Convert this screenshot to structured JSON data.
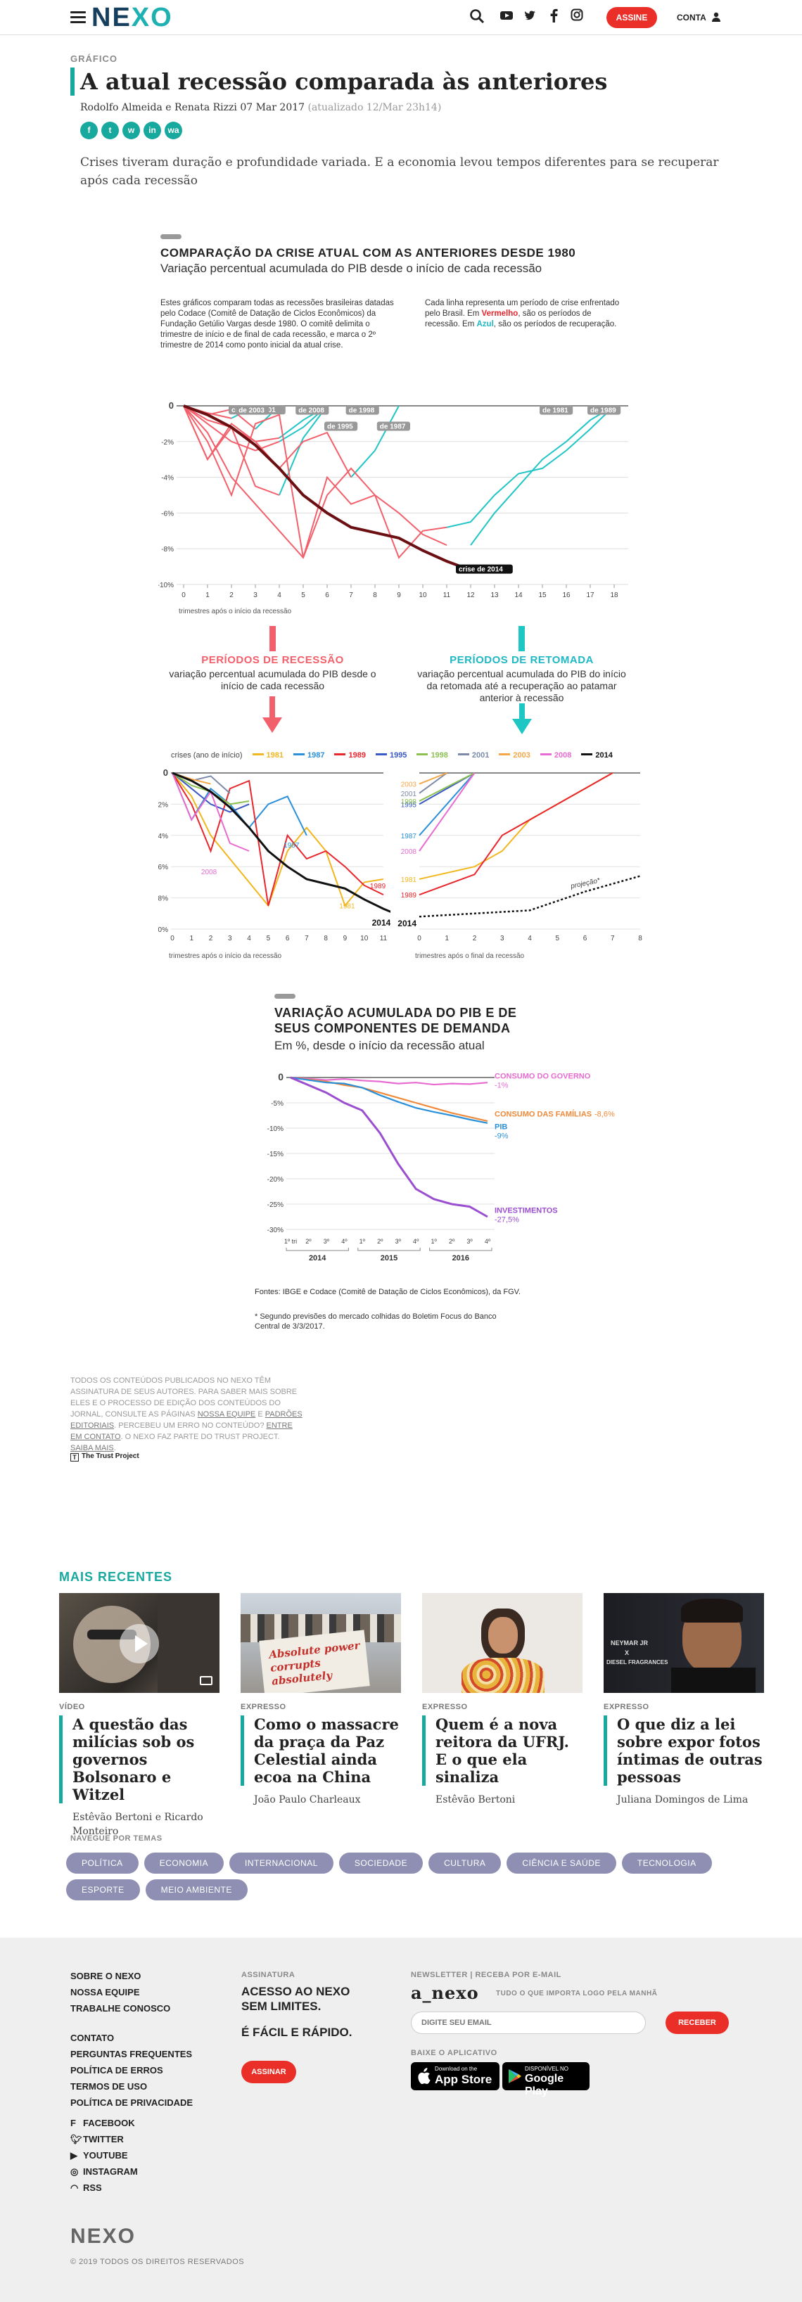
{
  "header": {
    "logo": "NEXO",
    "assine_label": "ASSINE",
    "conta_label": "CONTA",
    "icons": [
      "search-icon",
      "youtube-icon",
      "twitter-icon",
      "facebook-icon",
      "instagram-icon",
      "user-icon"
    ]
  },
  "article": {
    "kicker": "GRÁFICO",
    "title": "A atual recessão comparada às anteriores",
    "byline": "Rodolfo Almeida e Renata Rizzi 07 Mar 2017",
    "updated": "(atualizado 12/Mar 23h14)",
    "share": [
      "f",
      "t",
      "w",
      "in",
      "wa"
    ],
    "lead": "Crises tiveram duração e profundidade variada. E a economia levou tempos diferentes para se recuperar após cada recessão"
  },
  "chart1": {
    "title": "COMPARAÇÃO DA CRISE ATUAL COM AS ANTERIORES DESDE 1980",
    "subtitle": "Variação percentual acumulada do PIB desde o início de cada recessão",
    "note_left": "Estes gráficos comparam todas as recessões brasileiras datadas pelo Codace (Comitê de Datação de Ciclos Econômicos) da Fundação Getúlio Vargas desde 1980. O comitê delimita o trimestre de início e de final de cada recessão, e marca o 2º trimestre de 2014 como ponto inicial da atual crise.",
    "note_right_a": "Cada linha representa um período de crise enfrentado pelo Brasil. Em ",
    "note_right_red": "Vermelho",
    "note_right_b": ", são os períodos de recessão. Em ",
    "note_right_blue": "Azul",
    "note_right_c": ", são os períodos de recuperação.",
    "xlabel": "trimestres após o início da recessão",
    "labels": {
      "crise2001": "crise de 2001",
      "d2003": "de 2003",
      "d2008": "de 2008",
      "d1998": "de 1998",
      "d1995": "de 1995",
      "d1987": "de 1987",
      "d1981": "de 1981",
      "d1989": "de 1989",
      "crise2014": "crise de 2014"
    }
  },
  "chart1_data": {
    "type": "line",
    "x": [
      0,
      1,
      2,
      3,
      4,
      5,
      6,
      7,
      8,
      9,
      10,
      11,
      12,
      13,
      14,
      15,
      16,
      17,
      18
    ],
    "ylim": [
      -10,
      0
    ],
    "yticks": [
      "0",
      "-2%",
      "-4%",
      "-6%",
      "-8%",
      "-10%"
    ],
    "recession_series": [
      {
        "name": "1981",
        "values": [
          0,
          -1.5,
          -4,
          -5.5,
          -7,
          -8.5,
          -5,
          -3.5,
          -5,
          -8.5,
          -7,
          -6.8
        ]
      },
      {
        "name": "1987",
        "values": [
          0,
          -3,
          -1,
          -2,
          -3.5,
          -2,
          -1.5,
          -4
        ]
      },
      {
        "name": "1989",
        "values": [
          0,
          -2,
          -5,
          -1,
          -0.5,
          -8.5,
          -4,
          -5.5,
          -5,
          -6,
          -7.2,
          -7.8
        ]
      },
      {
        "name": "1995",
        "values": [
          0,
          -1,
          -2,
          -2.5,
          -2
        ]
      },
      {
        "name": "1998",
        "values": [
          0,
          -0.8,
          -1.2,
          -2,
          -1.8
        ]
      },
      {
        "name": "2001",
        "values": [
          0,
          -0.5,
          -0.2,
          -1.3
        ]
      },
      {
        "name": "2003",
        "values": [
          0,
          -0.4,
          -0.7
        ]
      },
      {
        "name": "2008",
        "values": [
          0,
          -3,
          -1.2,
          -4.5,
          -5
        ]
      },
      {
        "name": "2014",
        "values": [
          0,
          -0.5,
          -1.2,
          -2.2,
          -3.5,
          -5,
          -6,
          -6.8,
          -7.1,
          -7.4,
          -8.1,
          -8.7,
          -9.2
        ]
      }
    ],
    "recovery_series": [
      {
        "name": "1981",
        "points": [
          [
            11,
            -6.8
          ],
          [
            12,
            -6.5
          ],
          [
            13,
            -5
          ],
          [
            14,
            -3.8
          ],
          [
            15,
            -3.5
          ],
          [
            16,
            -2.5
          ],
          [
            17,
            -1.3
          ],
          [
            18,
            0
          ]
        ]
      },
      {
        "name": "1989",
        "points": [
          [
            12,
            -7.8
          ],
          [
            13,
            -6
          ],
          [
            14,
            -4.5
          ],
          [
            15,
            -3
          ],
          [
            16,
            -2
          ],
          [
            17,
            -0.8
          ],
          [
            18,
            0
          ]
        ]
      },
      {
        "name": "1987",
        "points": [
          [
            7,
            -4
          ],
          [
            8,
            -2.5
          ],
          [
            9,
            0
          ]
        ]
      },
      {
        "name": "2008",
        "points": [
          [
            4,
            -5
          ],
          [
            5,
            -1.8
          ],
          [
            6,
            0
          ]
        ]
      },
      {
        "name": "1995",
        "points": [
          [
            4,
            -2
          ],
          [
            5,
            -1.2
          ],
          [
            6,
            0
          ]
        ]
      },
      {
        "name": "1998",
        "points": [
          [
            4,
            -1.8
          ],
          [
            5,
            -0.8
          ],
          [
            6,
            0
          ]
        ]
      },
      {
        "name": "2001",
        "points": [
          [
            3,
            -1.3
          ],
          [
            4,
            0
          ]
        ]
      },
      {
        "name": "2003",
        "points": [
          [
            2,
            -0.7
          ],
          [
            3,
            0
          ]
        ]
      }
    ]
  },
  "mid": {
    "rec_title": "PERÍODOS DE RECESSÃO",
    "rec_sub": "variação percentual acumulada do PIB desde o início de cada recessão",
    "rep_title": "PERÍODOS DE RETOMADA",
    "rep_sub": "variação percentual acumulada do PIB do início da retomada até a recuperação ao patamar anterior à recessão",
    "legend_label": "crises (ano de início)",
    "legend": [
      {
        "name": "1981",
        "color": "#f2b71f"
      },
      {
        "name": "1987",
        "color": "#2b90d9"
      },
      {
        "name": "1989",
        "color": "#e8262c"
      },
      {
        "name": "1995",
        "color": "#3a59c4"
      },
      {
        "name": "1998",
        "color": "#8cc152"
      },
      {
        "name": "2001",
        "color": "#7a8aa8"
      },
      {
        "name": "2003",
        "color": "#f5a649"
      },
      {
        "name": "2008",
        "color": "#e86bd1"
      },
      {
        "name": "2014",
        "color": "#111111"
      }
    ],
    "xlabel_left": "trimestres após o início da recessão",
    "xlabel_right": "trimestres após o final da recessão",
    "projecao": "projeção*"
  },
  "chart2": {
    "title_l1": "VARIAÇÃO ACUMULADA DO PIB E DE",
    "title_l2": "SEUS COMPONENTES DE DEMANDA",
    "subtitle": "Em %, desde o início da recessão atual",
    "yticks": [
      "0",
      "-5%",
      "-10%",
      "-15%",
      "-20%",
      "-25%",
      "-30%"
    ],
    "years": [
      "2014",
      "2015",
      "2016"
    ],
    "quarters": [
      "1º tri",
      "2º",
      "3º",
      "4º",
      "1º",
      "2º",
      "3º",
      "4º",
      "1º",
      "2º",
      "3º",
      "4º"
    ],
    "series": [
      {
        "name": "CONSUMO DO GOVERNO",
        "value": "-1%",
        "color": "#e86bd1"
      },
      {
        "name": "CONSUMO DAS FAMÍLIAS",
        "value": "-8,6%",
        "color": "#f08a3a"
      },
      {
        "name": "PIB",
        "value": "-9%",
        "color": "#2b90d9"
      },
      {
        "name": "INVESTIMENTOS",
        "value": "-27,5%",
        "color": "#9b4fd0"
      }
    ],
    "source": "Fontes: IBGE e Codace (Comitê de Datação de Ciclos Econômicos), da FGV.",
    "footnote": "* Segundo previsões do mercado colhidas do Boletim Focus do Banco Central de 3/3/2017."
  },
  "chart2_data": {
    "type": "line",
    "x": [
      "2014-2",
      "2014-3",
      "2014-4",
      "2015-1",
      "2015-2",
      "2015-3",
      "2015-4",
      "2016-1",
      "2016-2",
      "2016-3",
      "2016-4"
    ],
    "ylim": [
      -30,
      0
    ],
    "series": [
      {
        "name": "CONSUMO DO GOVERNO",
        "values": [
          0,
          -0.5,
          -0.3,
          -0.6,
          -0.8,
          -1.2,
          -1,
          -1.4,
          -1.2,
          -1.3,
          -1
        ]
      },
      {
        "name": "CONSUMO DAS FAMÍLIAS",
        "values": [
          0,
          -0.8,
          -1.5,
          -2,
          -3,
          -4,
          -5,
          -6,
          -7,
          -7.8,
          -8.6
        ]
      },
      {
        "name": "PIB",
        "values": [
          0,
          -1,
          -1.2,
          -2,
          -3.5,
          -4.8,
          -6,
          -6.8,
          -7.5,
          -8.3,
          -9
        ]
      },
      {
        "name": "INVESTIMENTOS",
        "values": [
          0,
          -3,
          -5,
          -6.5,
          -11,
          -17,
          -22,
          -24,
          -25,
          -25.5,
          -27.5
        ]
      }
    ]
  },
  "legal": {
    "t1": "TODOS OS CONTEÚDOS PUBLICADOS NO NEXO TÊM ASSINATURA DE SEUS AUTORES. PARA SABER MAIS SOBRE ELES E O PROCESSO DE EDIÇÃO DOS CONTEÚDOS DO JORNAL, CONSULTE AS PÁGINAS ",
    "l1": "NOSSA EQUIPE",
    "t2": " E ",
    "l2": "PADRÕES EDITORIAIS",
    "t3": ". PERCEBEU UM ERRO NO CONTEÚDO? ",
    "l3": "ENTRE EM CONTATO",
    "t4": ". O NEXO FAZ PARTE DO TRUST PROJECT. ",
    "l4": "SAIBA MAIS",
    "t5": ".",
    "trust": "The Trust Project"
  },
  "recentes": {
    "heading": "MAIS RECENTES",
    "cards": [
      {
        "cat": "VÍDEO",
        "title": "A questão das milícias sob os governos Bolsonaro e Witzel",
        "author": "Estêvão Bertoni e Ricardo Monteiro"
      },
      {
        "cat": "EXPRESSO",
        "title": "Como o massacre da praça da Paz Celestial ainda ecoa na China",
        "author": "João Paulo Charleaux"
      },
      {
        "cat": "EXPRESSO",
        "title": "Quem é a nova reitora da UFRJ. E o que ela sinaliza",
        "author": "Estêvão Bertoni"
      },
      {
        "cat": "EXPRESSO",
        "title": "O que diz a lei sobre expor fotos íntimas de outras pessoas",
        "author": "Juliana Domingos de Lima"
      }
    ],
    "img_text": {
      "card2_sign": "Absolute power corrupts absolutely",
      "card4_a": "NEYMAR JR",
      "card4_b": "X",
      "card4_c": "DIESEL FRAGRANCES"
    }
  },
  "temas": {
    "label": "NAVEGUE POR TEMAS",
    "tags": [
      "POLÍTICA",
      "ECONOMIA",
      "INTERNACIONAL",
      "SOCIEDADE",
      "CULTURA",
      "CIÊNCIA E SAÚDE",
      "TECNOLOGIA",
      "ESPORTE",
      "MEIO AMBIENTE"
    ]
  },
  "footer": {
    "col1a": [
      "SOBRE O NEXO",
      "NOSSA EQUIPE",
      "TRABALHE CONOSCO"
    ],
    "col1b": [
      "CONTATO",
      "PERGUNTAS FREQUENTES",
      "POLÍTICA DE ERROS",
      "TERMOS DE USO",
      "POLÍTICA DE PRIVACIDADE"
    ],
    "social": [
      "FACEBOOK",
      "TWITTER",
      "YOUTUBE",
      "INSTAGRAM",
      "RSS"
    ],
    "assinatura_label": "ASSINATURA",
    "assinatura_l1": "ACESSO AO NEXO",
    "assinatura_l2": "SEM LIMITES.",
    "assinatura_l3": "É FÁCIL E RÁPIDO.",
    "assinar_btn": "ASSINAR",
    "newsletter_label": "NEWSLETTER | RECEBA POR E-MAIL",
    "anexo": "a_nexo",
    "anexo_tag": "TUDO O QUE IMPORTA LOGO PELA MANHÃ",
    "email_placeholder": "DIGITE SEU EMAIL",
    "receber_btn": "RECEBER",
    "app_label": "BAIXE O APLICATIVO",
    "appstore_small": "Download on the",
    "appstore": "App Store",
    "gplay_small": "DISPONÍVEL NO",
    "gplay": "Google Play",
    "logo": "NEXO",
    "copyright": "© 2019 TODOS OS DIREITOS RESERVADOS"
  }
}
